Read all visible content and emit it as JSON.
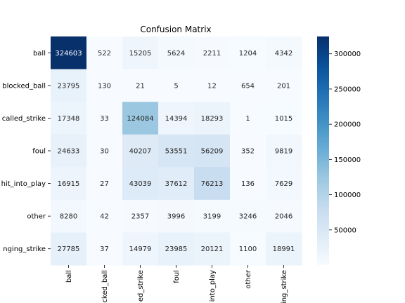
{
  "chart_data": {
    "type": "heatmap",
    "title": "Confusion Matrix",
    "xlabel": "",
    "ylabel": "",
    "row_labels": [
      "ball",
      "blocked_ball",
      "called_strike",
      "foul",
      "hit_into_play",
      "other",
      "swinging_strike"
    ],
    "col_labels": [
      "ball",
      "blocked_ball",
      "called_strike",
      "foul",
      "hit_into_play",
      "other",
      "swinging_strike"
    ],
    "col_labels_visible": [
      "ball",
      "cked_ball",
      "ed_strike",
      "foul",
      "into_play",
      "other",
      "ing_strike"
    ],
    "row_labels_visible": [
      "ball",
      "blocked_ball",
      "called_strike",
      "foul",
      "hit_into_play",
      "other",
      "nging_strike"
    ],
    "values": [
      [
        324603,
        522,
        15205,
        5624,
        2211,
        1204,
        4342
      ],
      [
        23795,
        130,
        21,
        5,
        12,
        654,
        201
      ],
      [
        17348,
        33,
        124084,
        14394,
        18293,
        1,
        1015
      ],
      [
        24633,
        30,
        40207,
        53551,
        56209,
        352,
        9819
      ],
      [
        16915,
        27,
        43039,
        37612,
        76213,
        136,
        7629
      ],
      [
        8280,
        42,
        2357,
        3996,
        3199,
        3246,
        2046
      ],
      [
        27785,
        37,
        14979,
        23985,
        20121,
        1100,
        18991
      ]
    ],
    "colormap": "Blues",
    "vmin": 1,
    "vmax": 324603,
    "colorbar_ticks": [
      50000,
      100000,
      150000,
      200000,
      250000,
      300000
    ],
    "colorbar_tick_labels": [
      "50000",
      "100000",
      "150000",
      "200000",
      "250000",
      "300000"
    ],
    "colors": {
      "low": "#f7fbff",
      "high": "#08306b"
    }
  }
}
